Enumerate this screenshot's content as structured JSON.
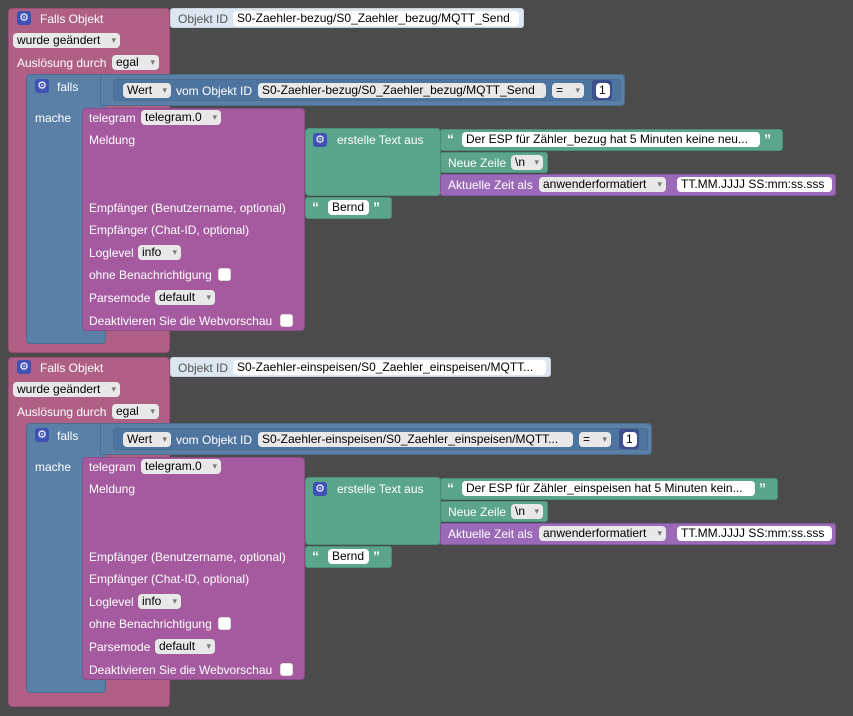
{
  "blocks": [
    {
      "trigger_label": "Falls Objekt",
      "object_id_label": "Objekt ID",
      "object_id_value": "S0-Zaehler-bezug/S0_Zaehler_bezug/MQTT_Send",
      "changed_value": "wurde geändert",
      "triggered_by_label": "Auslösung durch",
      "triggered_by_value": "egal",
      "if_label": "falls",
      "then_label": "mache",
      "cond_value_dropdown": "Wert",
      "cond_from_label": "vom Objekt ID",
      "cond_object_id": "S0-Zaehler-bezug/S0_Zaehler_bezug/MQTT_Send",
      "cond_operator": "=",
      "cond_number": "1",
      "telegram_label": "telegram",
      "telegram_instance": "telegram.0",
      "message_label": "Meldung",
      "create_text_label": "erstelle Text aus",
      "text_value": "Der ESP für Zähler_bezug hat 5 Minuten keine neu...",
      "newline_label": "Neue Zeile",
      "newline_value": "\\n",
      "time_label": "Aktuelle Zeit als",
      "time_format": "anwenderformatiert",
      "time_pattern": "TT.MM.JJJJ SS:mm:ss.sss",
      "recipient_label": "Empfänger (Benutzername, optional)",
      "recipient_value": "Bernd",
      "chat_label": "Empfänger (Chat-ID, optional)",
      "loglevel_label": "Loglevel",
      "loglevel_value": "info",
      "silent_label": "ohne Benachrichtigung",
      "parsemode_label": "Parsemode",
      "parsemode_value": "default",
      "preview_label": "Deaktivieren Sie die Webvorschau"
    },
    {
      "trigger_label": "Falls Objekt",
      "object_id_label": "Objekt ID",
      "object_id_value": "S0-Zaehler-einspeisen/S0_Zaehler_einspeisen/MQTT...",
      "changed_value": "wurde geändert",
      "triggered_by_label": "Auslösung durch",
      "triggered_by_value": "egal",
      "if_label": "falls",
      "then_label": "mache",
      "cond_value_dropdown": "Wert",
      "cond_from_label": "vom Objekt ID",
      "cond_object_id": "S0-Zaehler-einspeisen/S0_Zaehler_einspeisen/MQTT...",
      "cond_operator": "=",
      "cond_number": "1",
      "telegram_label": "telegram",
      "telegram_instance": "telegram.0",
      "message_label": "Meldung",
      "create_text_label": "erstelle Text aus",
      "text_value": "Der ESP für Zähler_einspeisen hat 5 Minuten kein...",
      "newline_label": "Neue Zeile",
      "newline_value": "\\n",
      "time_label": "Aktuelle Zeit als",
      "time_format": "anwenderformatiert",
      "time_pattern": "TT.MM.JJJJ SS:mm:ss.sss",
      "recipient_label": "Empfänger (Benutzername, optional)",
      "recipient_value": "Bernd",
      "chat_label": "Empfänger (Chat-ID, optional)",
      "loglevel_label": "Loglevel",
      "loglevel_value": "info",
      "silent_label": "ohne Benachrichtigung",
      "parsemode_label": "Parsemode",
      "parsemode_value": "default",
      "preview_label": "Deaktivieren Sie die Webvorschau"
    }
  ],
  "icons": {
    "gear": "gear-icon",
    "quote_open": "quote-open-icon",
    "quote_close": "quote-close-icon"
  }
}
